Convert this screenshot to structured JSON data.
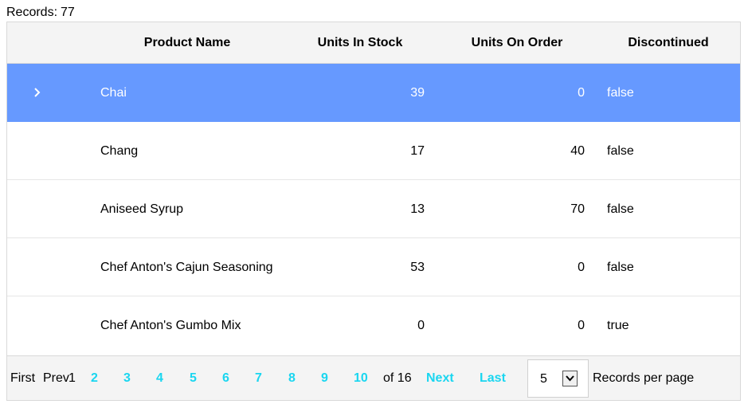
{
  "records": {
    "label": "Records:",
    "count": "77"
  },
  "columns": [
    "Product Name",
    "Units In Stock",
    "Units On Order",
    "Discontinued"
  ],
  "rows": [
    {
      "name": "Chai",
      "stock": "39",
      "order": "0",
      "discontinued": "false",
      "selected": true
    },
    {
      "name": "Chang",
      "stock": "17",
      "order": "40",
      "discontinued": "false",
      "selected": false
    },
    {
      "name": "Aniseed Syrup",
      "stock": "13",
      "order": "70",
      "discontinued": "false",
      "selected": false
    },
    {
      "name": "Chef Anton's Cajun Seasoning",
      "stock": "53",
      "order": "0",
      "discontinued": "false",
      "selected": false
    },
    {
      "name": "Chef Anton's Gumbo Mix",
      "stock": "0",
      "order": "0",
      "discontinued": "true",
      "selected": false
    }
  ],
  "pager": {
    "first": "First",
    "prev": "Prev",
    "current_page": "1",
    "pages": [
      "2",
      "3",
      "4",
      "5",
      "6",
      "7",
      "8",
      "9",
      "10"
    ],
    "of_total": "of 16",
    "next": "Next",
    "last": "Last",
    "page_size": "5",
    "page_size_label": "Records per page"
  },
  "colors": {
    "selected_row": "#6699ff",
    "link": "#1ad6f0",
    "header_bg": "#f4f4f4"
  }
}
